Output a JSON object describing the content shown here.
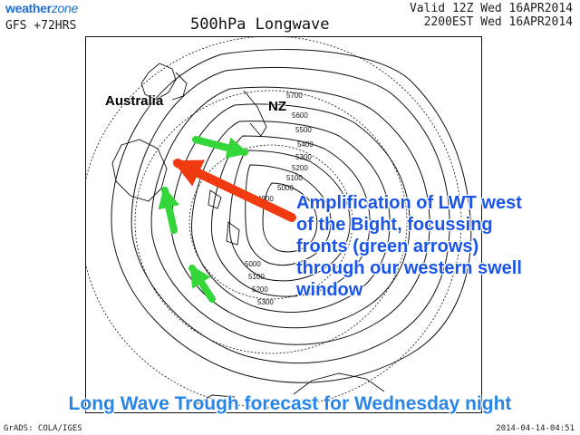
{
  "header": {
    "brand_main": "weather",
    "brand_tail": "zone",
    "model_run": "GFS +72HRS",
    "title": "500hPa Longwave",
    "valid_utc": "Valid 12Z Wed 16APR2014",
    "valid_local": "2200EST Wed 16APR2014"
  },
  "map": {
    "labels": {
      "australia": "Australia",
      "nz": "NZ"
    },
    "contour_labels": [
      "5700",
      "5600",
      "5500",
      "5400",
      "5300",
      "5200",
      "5100",
      "5000",
      "4900",
      "5000",
      "5100",
      "5200",
      "5300"
    ],
    "colors": {
      "red_arrow": "#f03a10",
      "green_arrows": "#35d63a",
      "contours": "#111111"
    }
  },
  "annotation": {
    "lines": [
      "Amplification of LWT west",
      "of the Bight, focussing",
      "fronts (green arrows)",
      "through our western swell",
      "window"
    ]
  },
  "caption": "Long Wave Trough forecast for Wednesday night",
  "footer": {
    "credit": "GrADS: COLA/IGES",
    "timestamp": "2014-04-14-04:51"
  }
}
